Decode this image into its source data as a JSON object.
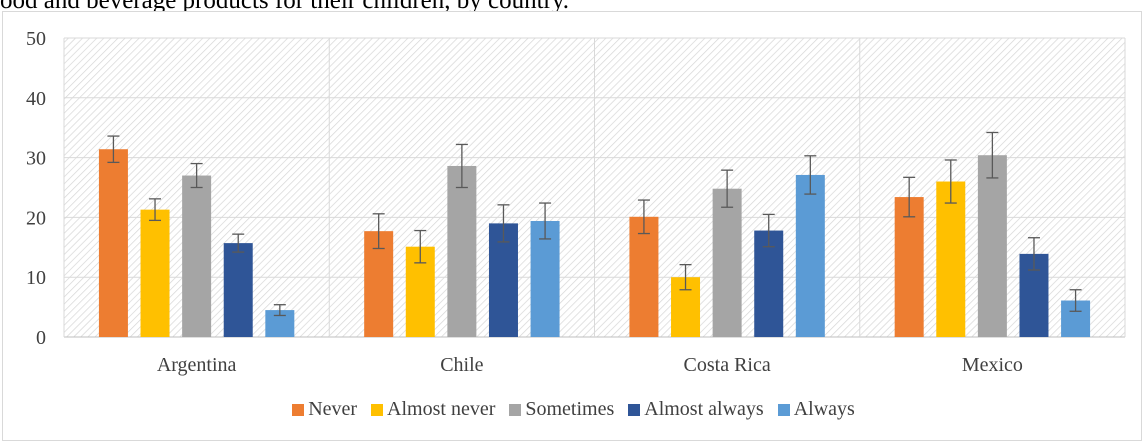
{
  "caption": "ood and beverage products for their children, by country.",
  "chart_data": {
    "type": "bar",
    "categories": [
      "Argentina",
      "Chile",
      "Costa Rica",
      "Mexico"
    ],
    "series": [
      {
        "name": "Never",
        "color": "#ED7D31",
        "values": [
          31.4,
          17.7,
          20.1,
          23.4
        ],
        "errors": [
          2.2,
          2.9,
          2.8,
          3.3
        ]
      },
      {
        "name": "Almost never",
        "color": "#FFC000",
        "values": [
          21.3,
          15.1,
          10.0,
          26.0
        ],
        "errors": [
          1.8,
          2.7,
          2.1,
          3.6
        ]
      },
      {
        "name": "Sometimes",
        "color": "#A5A5A5",
        "values": [
          27.0,
          28.6,
          24.8,
          30.4
        ],
        "errors": [
          2.0,
          3.6,
          3.1,
          3.8
        ]
      },
      {
        "name": "Almost always",
        "color": "#2F5597",
        "values": [
          15.7,
          19.0,
          17.8,
          13.9
        ],
        "errors": [
          1.5,
          3.1,
          2.7,
          2.7
        ]
      },
      {
        "name": "Always",
        "color": "#5B9BD5",
        "values": [
          4.5,
          19.4,
          27.1,
          6.1
        ],
        "errors": [
          0.9,
          3.0,
          3.2,
          1.8
        ]
      }
    ],
    "ylim": [
      0,
      50
    ],
    "yticks": [
      "0",
      "10",
      "20",
      "30",
      "40",
      "50"
    ],
    "grid": true,
    "legend_position": "bottom",
    "xlabel": "",
    "ylabel": ""
  }
}
